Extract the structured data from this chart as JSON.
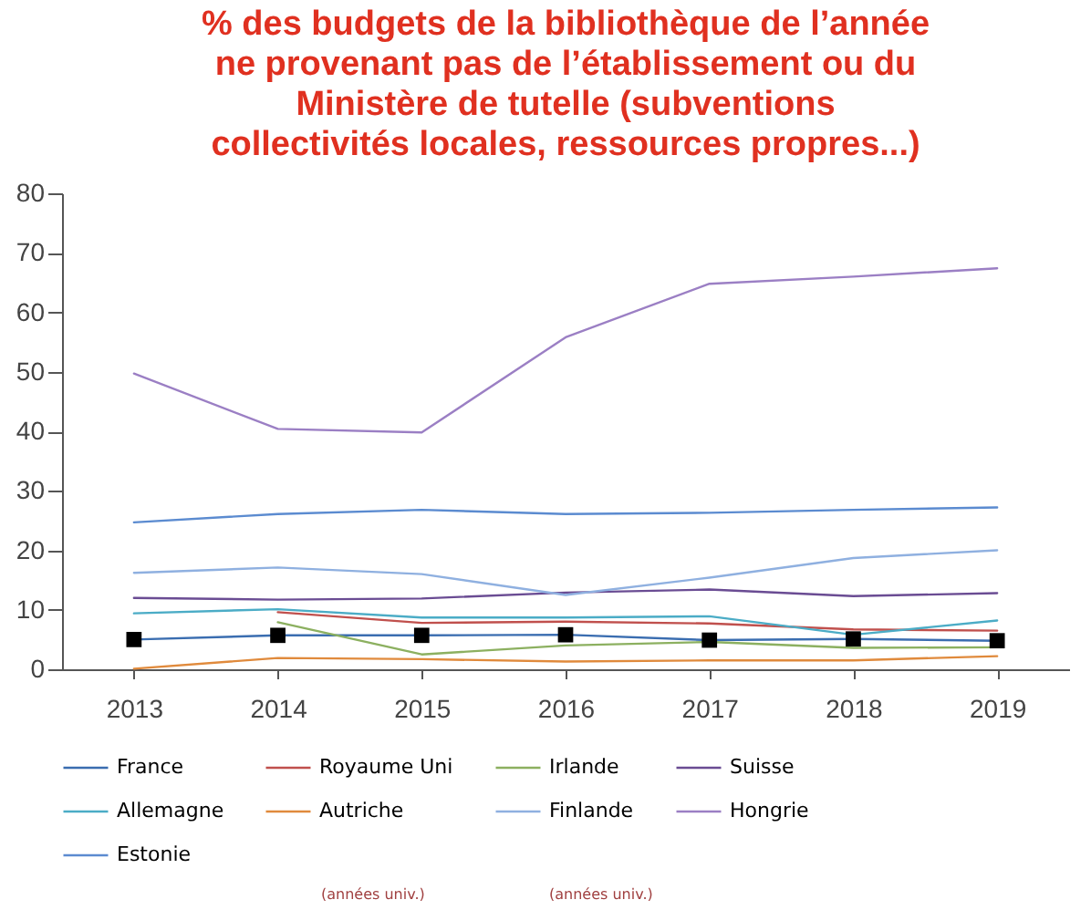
{
  "chart_data": {
    "type": "line",
    "title": "% des budgets de la bibliothèque de l’année ne provenant pas de l’établissement ou du Ministère de tutelle (subventions collectivités locales, ressources propres...)",
    "categories": [
      "2013",
      "2014",
      "2015",
      "2016",
      "2017",
      "2018",
      "2019"
    ],
    "series": [
      {
        "name": "France",
        "color": "#3a6db0",
        "marker": "square",
        "values": [
          5.0,
          5.7,
          5.7,
          5.8,
          4.9,
          5.1,
          4.8
        ]
      },
      {
        "name": "Royaume Uni",
        "color": "#c0504d",
        "values": [
          null,
          9.6,
          7.8,
          8.0,
          7.7,
          6.7,
          6.5
        ]
      },
      {
        "name": "Irlande",
        "color": "#8cb060",
        "values": [
          null,
          7.9,
          2.5,
          4.0,
          4.6,
          3.6,
          3.7
        ]
      },
      {
        "name": "Suisse",
        "color": "#6a4c93",
        "values": [
          12.0,
          11.7,
          11.9,
          12.9,
          13.4,
          12.3,
          12.8
        ]
      },
      {
        "name": "Allemagne",
        "color": "#4bacc6",
        "values": [
          9.4,
          10.1,
          8.7,
          8.7,
          8.9,
          5.8,
          8.2
        ]
      },
      {
        "name": "Autriche",
        "color": "#e08a3c",
        "values": [
          0.1,
          1.9,
          1.7,
          1.3,
          1.5,
          1.5,
          2.2
        ]
      },
      {
        "name": "Finlande",
        "color": "#8fb0e0",
        "values": [
          16.2,
          17.1,
          16.0,
          12.5,
          15.4,
          18.7,
          20.0
        ]
      },
      {
        "name": "Hongrie",
        "color": "#9b7fc4",
        "values": [
          49.7,
          40.4,
          39.8,
          55.8,
          64.8,
          66.0,
          67.4
        ]
      },
      {
        "name": "Estonie",
        "color": "#5b8bd0",
        "values": [
          24.7,
          26.1,
          26.8,
          26.1,
          26.3,
          26.8,
          27.2
        ]
      }
    ],
    "ylim": [
      0,
      80
    ],
    "yticks": [
      0,
      10,
      20,
      30,
      40,
      50,
      60,
      70,
      80
    ],
    "grid": false,
    "legend": "bottom",
    "annotations": [
      "(années univ.)",
      "(années univ.)"
    ]
  }
}
